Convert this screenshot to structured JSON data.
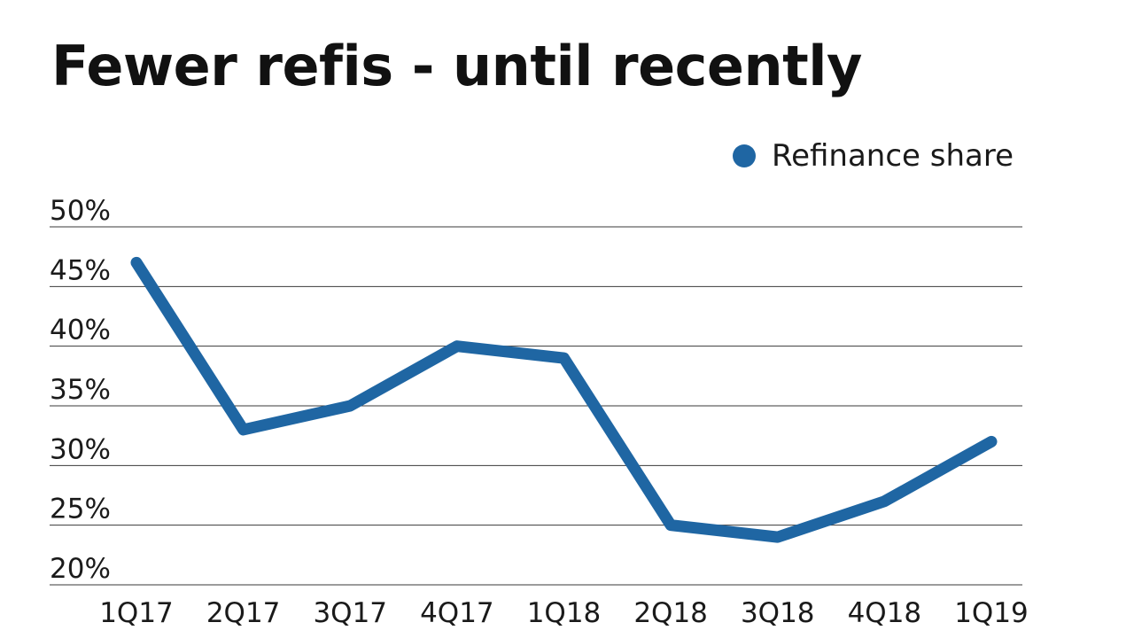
{
  "title": "Fewer refis - until recently",
  "legend": {
    "label": "Refinance share",
    "color": "#1f66a3"
  },
  "chart_data": {
    "type": "line",
    "title": "Fewer refis - until recently",
    "xlabel": "",
    "ylabel": "",
    "categories": [
      "1Q17",
      "2Q17",
      "3Q17",
      "4Q17",
      "1Q18",
      "2Q18",
      "3Q18",
      "4Q18",
      "1Q19"
    ],
    "series": [
      {
        "name": "Refinance share",
        "color": "#1f66a3",
        "values": [
          47,
          33,
          35,
          40,
          39,
          25,
          24,
          27,
          32
        ]
      }
    ],
    "ylim": [
      20,
      50
    ],
    "yticks": [
      50,
      45,
      40,
      35,
      30,
      25,
      20
    ],
    "ytick_labels": [
      "50%",
      "45%",
      "40%",
      "35%",
      "30%",
      "25%",
      "20%"
    ],
    "grid": true,
    "legend_position": "top-right"
  }
}
